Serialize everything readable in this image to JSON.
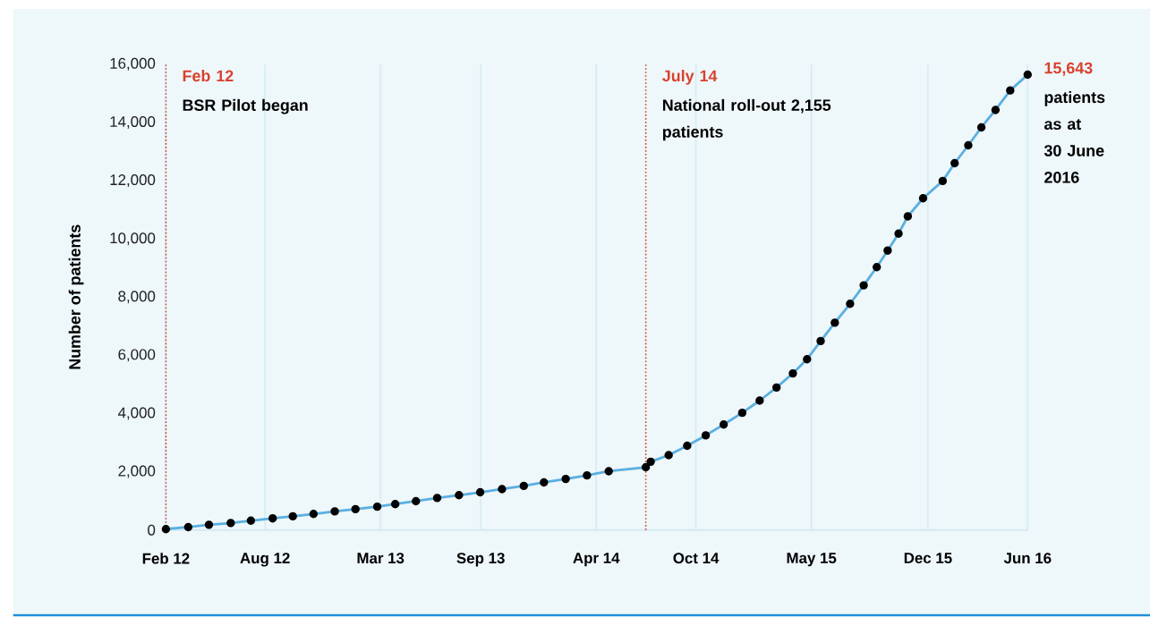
{
  "chart_data": {
    "type": "line",
    "ylabel": "Number of patients",
    "x": [
      "2012-02-01",
      "2012-03-13",
      "2012-04-20",
      "2012-05-30",
      "2012-07-06",
      "2012-08-15",
      "2012-09-21",
      "2012-10-29",
      "2012-12-07",
      "2013-01-14",
      "2013-02-23",
      "2013-03-28",
      "2013-05-05",
      "2013-06-13",
      "2013-07-23",
      "2013-08-31",
      "2013-10-10",
      "2013-11-19",
      "2013-12-26",
      "2014-02-04",
      "2014-03-15",
      "2014-04-24",
      "2014-07-01",
      "2014-07-10",
      "2014-08-12",
      "2014-09-15",
      "2014-10-19",
      "2014-11-21",
      "2014-12-25",
      "2015-01-26",
      "2015-02-26",
      "2015-03-28",
      "2015-04-23",
      "2015-05-18",
      "2015-06-13",
      "2015-07-11",
      "2015-08-05",
      "2015-08-29",
      "2015-09-18",
      "2015-10-08",
      "2015-10-25",
      "2015-11-22",
      "2015-12-28",
      "2016-01-19",
      "2016-02-13",
      "2016-03-08",
      "2016-04-03",
      "2016-04-30",
      "2016-06-01"
    ],
    "series": [
      {
        "color": "#5aafe0",
        "values": [
          30,
          100,
          180,
          240,
          320,
          400,
          470,
          550,
          640,
          715,
          800,
          890,
          990,
          1100,
          1195,
          1295,
          1405,
          1515,
          1635,
          1755,
          1875,
          2020,
          2155,
          2345,
          2570,
          2895,
          3250,
          3625,
          4025,
          4445,
          4895,
          5380,
          5865,
          6490,
          7120,
          7770,
          8405,
          9030,
          9600,
          10180,
          10775,
          11395,
          11990,
          12600,
          13215,
          13830,
          14430,
          15100,
          15643
        ],
        "value_labels": [
          null,
          null,
          null,
          null,
          null,
          null,
          null,
          null,
          null,
          null,
          null,
          null,
          null,
          null,
          null,
          null,
          null,
          null,
          null,
          null,
          null,
          null,
          null,
          null,
          null,
          null,
          null,
          null,
          null,
          null,
          null,
          null,
          null,
          null,
          null,
          null,
          null,
          null,
          null,
          null,
          null,
          null,
          null,
          null,
          null,
          null,
          null,
          null,
          "15,643"
        ]
      }
    ],
    "xlim": [
      "2012-02-01",
      "2016-06-01"
    ],
    "xticks": [
      {
        "value": "2012-02",
        "label": "Feb 12"
      },
      {
        "value": "2012-08",
        "label": "Aug 12"
      },
      {
        "value": "2013-03",
        "label": "Mar 13"
      },
      {
        "value": "2013-09",
        "label": "Sep 13"
      },
      {
        "value": "2014-04",
        "label": "Apr 14"
      },
      {
        "value": "2014-10",
        "label": "Oct 14"
      },
      {
        "value": "2015-05",
        "label": "May 15"
      },
      {
        "value": "2015-12",
        "label": "Dec 15"
      },
      {
        "value": "2016-06",
        "label": "Jun 16"
      }
    ],
    "ylim": [
      0,
      16000
    ],
    "yticks": [
      {
        "value": 0,
        "label": "0"
      },
      {
        "value": 2000,
        "label": "2,000"
      },
      {
        "value": 4000,
        "label": "4,000"
      },
      {
        "value": 6000,
        "label": "6,000"
      },
      {
        "value": 8000,
        "label": "8,000"
      },
      {
        "value": 10000,
        "label": "10,000"
      },
      {
        "value": 12000,
        "label": "12,000"
      },
      {
        "value": 14000,
        "label": "14,000"
      },
      {
        "value": 16000,
        "label": "16,000"
      }
    ],
    "ref_lines": [
      {
        "axis": "x",
        "value": "2012-02-01",
        "label": "Feb 12",
        "color": "#d9412e",
        "line_style": "dotted"
      },
      {
        "axis": "x",
        "value": "2014-07-01",
        "label": "July 14",
        "color": "#d9412e",
        "line_style": "dotted"
      }
    ],
    "annotations": [
      "BSR Pilot began",
      "National roll-out 2,155 patients",
      "patients as at 30 June 2016"
    ],
    "grid": "x",
    "marker": "circle",
    "line_style": "solid"
  }
}
